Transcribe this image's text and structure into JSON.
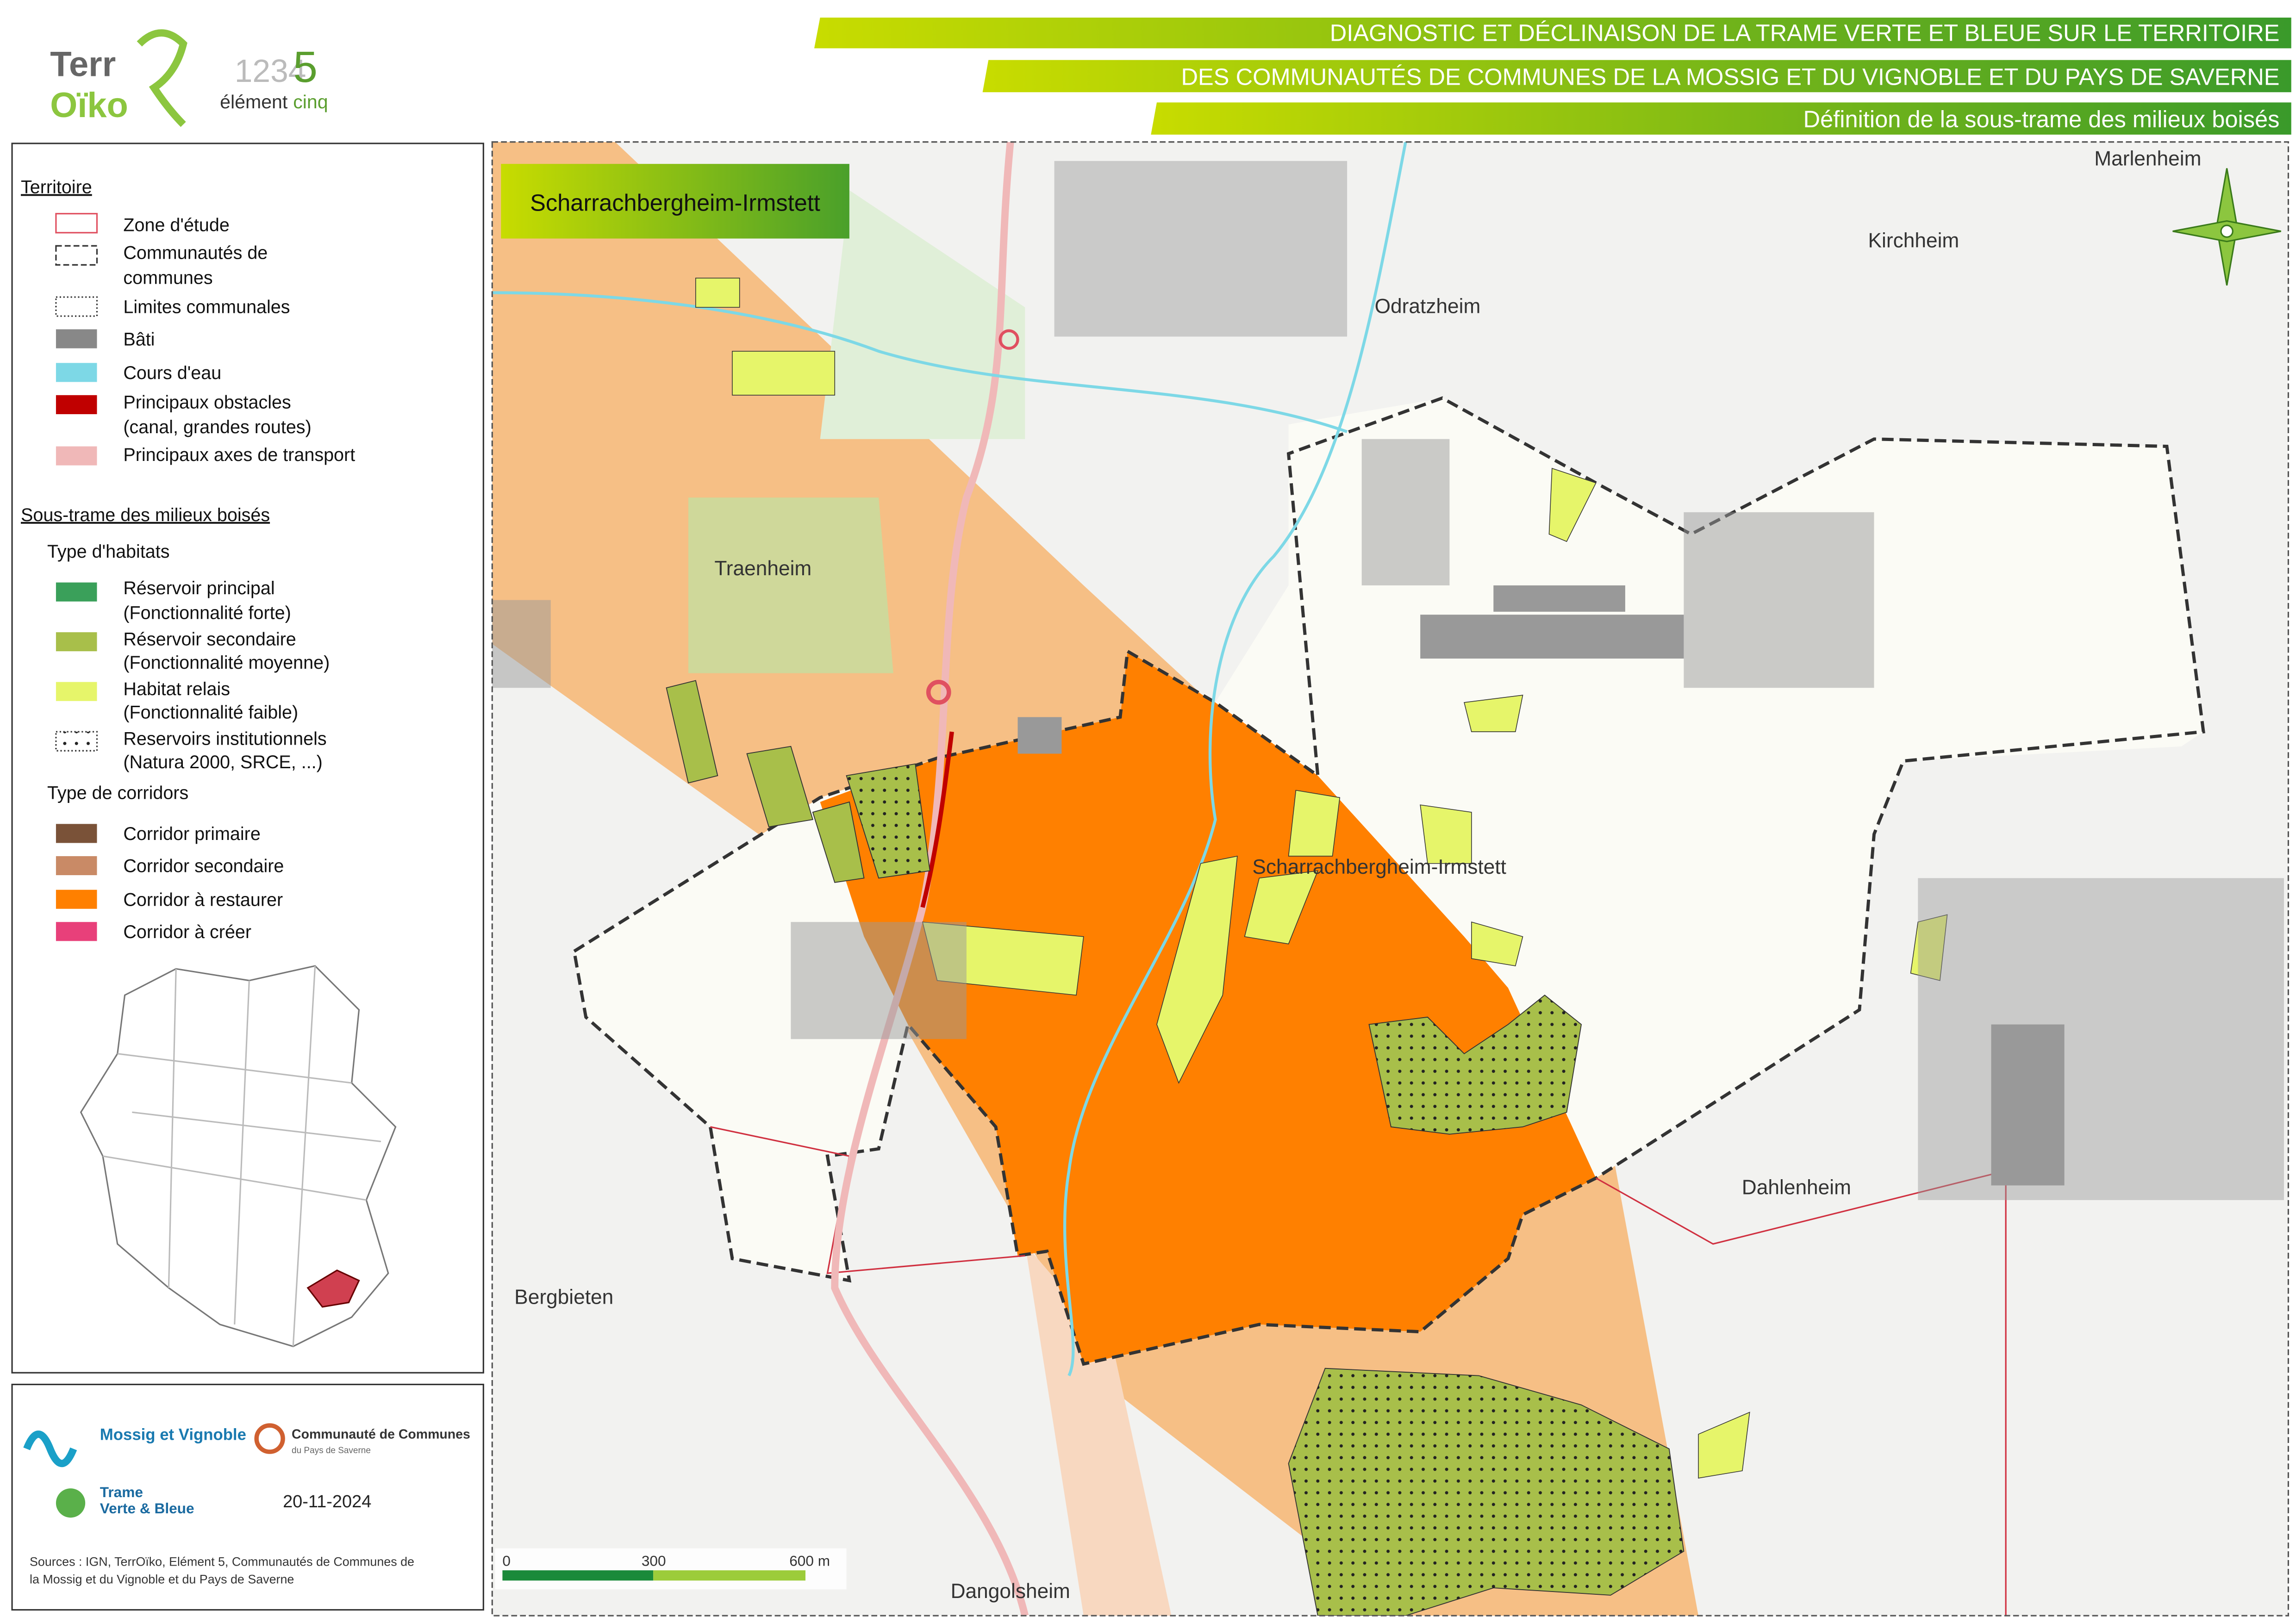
{
  "header": {
    "titles": [
      "DIAGNOSTIC ET DÉCLINAISON DE LA TRAME VERTE ET BLEUE SUR LE TERRITOIRE",
      "DES COMMUNAUTÉS DE COMMUNES DE LA MOSSIG ET DU VIGNOBLE ET DU PAYS DE SAVERNE",
      "Définition de la sous-trame des milieux boisés"
    ]
  },
  "logos": {
    "terroiko": [
      "Terr",
      "Oïko"
    ],
    "element": [
      "1234",
      "5",
      "élément",
      "cinq"
    ]
  },
  "legend": {
    "territoire": {
      "title": "Territoire",
      "items": [
        [
          "Zone d'étude"
        ],
        [
          "Communautés de",
          "communes"
        ],
        [
          "Limites communales"
        ],
        [
          "Bâti"
        ],
        [
          "Cours d'eau"
        ],
        [
          "Principaux obstacles",
          "(canal, grandes routes)"
        ],
        [
          "Principaux axes de transport"
        ]
      ]
    },
    "boises": {
      "title": "Sous-trame des milieux boisés",
      "habitats_title": "Type d'habitats",
      "habitats": [
        [
          "Réservoir principal",
          "(Fonctionnalité forte)"
        ],
        [
          "Réservoir secondaire",
          "(Fonctionnalité moyenne)"
        ],
        [
          "Habitat relais",
          "(Fonctionnalité faible)"
        ],
        [
          "Reservoirs institutionnels",
          "(Natura 2000, SRCE, ...)"
        ]
      ],
      "corridors_title": "Type de corridors",
      "corridors": [
        "Corridor primaire",
        "Corridor secondaire",
        "Corridor à restaurer",
        "Corridor à créer"
      ]
    }
  },
  "map": {
    "title": "Scharrachbergheim-Irmstett",
    "places": [
      "Marlenheim",
      "Kirchheim",
      "Odratzheim",
      "Traenheim",
      "Scharrachbergheim-Irmstett",
      "Dahlenheim",
      "Bergbieten",
      "Dangolsheim"
    ],
    "scale": [
      "0",
      "300",
      "600 m"
    ]
  },
  "footer": {
    "partners": [
      "Mossig et Vignoble",
      "Communauté de Communes",
      "du Pays de Saverne",
      "Trame",
      "Verte & Bleue"
    ],
    "date": "20-11-2024",
    "sources": [
      "Sources : IGN, TerrOïko, Elément 5, Communautés de Communes de",
      "la Mossig et du Vignoble et du Pays de Saverne"
    ]
  }
}
